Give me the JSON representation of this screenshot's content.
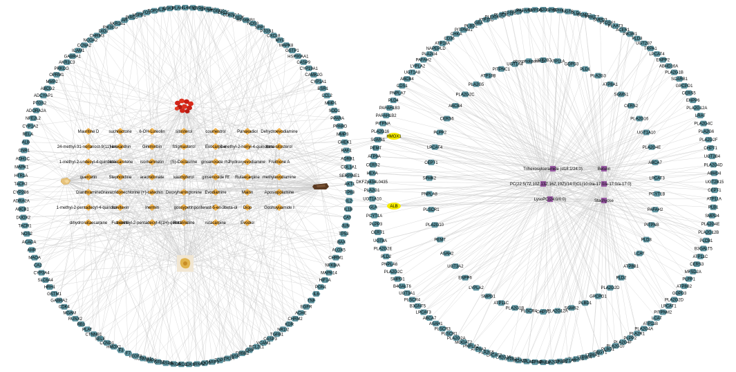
{
  "network_left": {
    "targets_outer": [
      "IL4",
      "IFNG",
      "CYP1B1",
      "CYP3A2",
      "PTGER3",
      "DRD5",
      "CDKN1A",
      "CHUK",
      "RPS6KB1",
      "NOS3",
      "SPP1",
      "PTGS1",
      "CXCL8",
      "MYC",
      "MAPK8",
      "GSTP1",
      "HSP90AA1",
      "CASP9",
      "CYP19A1",
      "CAMK2G",
      "CYP1A1",
      "ESR1",
      "CCL2",
      "MMP1",
      "SOD1",
      "PPARA",
      "PPARD",
      "MMP3",
      "CHEK1",
      "RAF1",
      "ADRB1",
      "COL1A1",
      "SERPINE1",
      "AKT1",
      "TP63",
      "IL2",
      "IL1B",
      "CAT",
      "JUN",
      "TP53",
      "BAX",
      "ALOX5",
      "CHRM1",
      "NFKBIA",
      "MAPK14",
      "HIF1A",
      "PON1",
      "IL6",
      "TNF",
      "EGFR",
      "ACHE",
      "CHRM2",
      "KDR",
      "NR1I2",
      "TGFB1",
      "CASP3",
      "VCAM1",
      "BCL2L1",
      "CRP",
      "ERBB2",
      "INSR",
      "HTR2A",
      "TOP1",
      "PARP1",
      "NQO1",
      "CHRNA7",
      "CDK1",
      "DRD1",
      "PRKCA",
      "CASP8",
      "TGFB2",
      "MMP9",
      "KCNMA1",
      "VEGFA",
      "F7",
      "F3",
      "HMOX1",
      "CCND1",
      "SELE",
      "CTNNB1",
      "PLAT",
      "RB1",
      "RUNX2",
      "MGAM",
      "CDK4",
      "GABRA2",
      "GSTM1",
      "HRH1",
      "SLC6A4",
      "CYP3A4",
      "CA2",
      "MAOA",
      "AHR",
      "ACACA",
      "NOS2",
      "TACR1",
      "DUOX2",
      "ABCB1",
      "ADRA2A",
      "CYP2B6",
      "TACR2",
      "HTR1A",
      "MAPK1",
      "ADH1C",
      "CNR1",
      "ALB",
      "RELA",
      "CYP1A2",
      "NFE2L2",
      "ADORA2A",
      "PTGS2",
      "ADCYAP1",
      "ABCG2",
      "MMP2",
      "OPRM1",
      "PRKCG",
      "AKR1C3",
      "GABRA1",
      "ICAM1",
      "CCNA2",
      "NCOA2",
      "CHRM3",
      "DIO2",
      "PIK3CG",
      "AKR1B1",
      "AR",
      "BIRC5",
      "HSPB1",
      "FOS",
      "TOP2A",
      "IL10",
      "CSK3B",
      "PLAU"
    ],
    "compounds": [
      "Mauritine D",
      "suchilactone",
      "6-OH-Luteolin",
      "sitosterol",
      "coumestrol",
      "Panaxadiol",
      "Dehydroevodiamine",
      "24-methyl-31-norlanost-9(11)-enol",
      "Neoxanthin",
      "Giniminbin",
      "Stigmasterol",
      "Evocarpine",
      "1-methyl-2-nonyl-4-quinolone",
      "beta-sitosterol",
      "1-methyl-2-undecyl-4-quinolone",
      "beta-carotene",
      "isorhamnetin",
      "(S)-Coclaurine",
      "ginsenoside rh2",
      "hydroxyevodiamine",
      "Fruitnone A",
      "quercetin",
      "Stepholidine",
      "arachidonate",
      "kaempferol",
      "ginsenoside Rf",
      "Rutaecarpine",
      "methylevodiamine",
      "Dianthramine",
      "Gravacridonechlorine",
      "(+)-catechin",
      "Deoxyharringtonine",
      "Evodiamine",
      "Mairin",
      "Aposiopolamine",
      "1-methyl-2-pentadecyl-4-quinolone",
      "Isovitexin",
      "Inermin",
      "gossypetin",
      "poriferast-5-en-3beta-ol",
      "Diop",
      "Goshuyuamide I",
      "dihydroruitaecarpine",
      "Fumarine",
      "1-methyl-2-pentadecyl-4(1H)-quinolone",
      "Rutalinidine",
      "rutacarpine",
      "Evodiol"
    ],
    "herbs": [
      "pepper-herb-icon",
      "root-herb-icon",
      "bark-herb-icon",
      "flower-herb-icon"
    ]
  },
  "bridge_nodes": [
    "HMOX1",
    "ALB"
  ],
  "network_right": {
    "targets_outer": [
      "PLA2G4B",
      "GPAT",
      "SPHK1",
      "UGT8",
      "PLD1",
      "SGMS2",
      "PRKCZ",
      "SMPD3",
      "PTDSS1",
      "PLAAT3",
      "ACER1",
      "PIK3R1",
      "PLD3",
      "UGT2B7",
      "TRPA1",
      "LPCAT4",
      "ENPP2",
      "ABHD16A",
      "PLA2G1B",
      "SCARB1",
      "GPCPD1",
      "CERS5",
      "ENPP6",
      "PLA2G12A",
      "LRAT",
      "PLA2G4C",
      "PLA2G6",
      "PLA2G2F",
      "CHPT1",
      "UGT2B4",
      "PLA2G4D",
      "ABHD4",
      "UGT2B15",
      "CEPT1",
      "ATP11A",
      "PLB1",
      "SMPD4",
      "PLA2G4E",
      "PLA2G12B",
      "PLCB1",
      "B3GALT5",
      "ATP11C",
      "CERS3",
      "MFSD2A",
      "PLPP1",
      "ATP8B2",
      "GDPD3",
      "PLA2G2D",
      "LPCAT1",
      "PITPNM2",
      "LCAT",
      "ATP11B",
      "PLA2G4A",
      "PLA2R1",
      "PLPP2",
      "PLA2G4F",
      "PLA2G10",
      "PLBD1",
      "GBGT1",
      "ATP8A1",
      "ATP8B4",
      "PLA2G3",
      "UGT1A9",
      "ATP8B1",
      "PLA2G7",
      "CPNE6",
      "PITPNB",
      "LYPLA1",
      "MBOAT2",
      "UGT2B17",
      "PLA2G15",
      "LPCAT2",
      "PLA2G5",
      "ATP8A2",
      "PNPLA2",
      "MOGAT2",
      "PLA2G2A",
      "PLSCR1",
      "PLSCR3",
      "ASAH1",
      "ABCA7",
      "LPCAT3",
      "B3GNT5",
      "PLSCR4",
      "UGT3A1",
      "B4GALT6",
      "SMPD1",
      "PLA2G2C",
      "PNPLA6",
      "PLD2",
      "PLA2G2E",
      "UGT8A",
      "CERT1",
      "PLPP3",
      "PCYT1A",
      "GLA",
      "UGT1A10",
      "PLA2G1",
      "DKFZp434L0435",
      "HEXA",
      "CERS2",
      "ATP9A",
      "PEMT",
      "SGMS1",
      "PLA2G16",
      "PITPNA",
      "PAFAH1B2",
      "PAFAH1B3",
      "PLD4",
      "PNPLA7",
      "CDS1",
      "ABCB4",
      "UGT1A8",
      "LYPLA2",
      "PAFAH2",
      "PLA2G4",
      "NAPEPLD",
      "ATP10A",
      "CD36",
      "CHKA",
      "PITPNM1",
      "PLBD2",
      "GBA",
      "ATP10D",
      "PLEKHA8",
      "PLSCR2",
      "ATP11C2",
      "UGT1A1",
      "PAFAH1B1",
      "SMPD2"
    ],
    "targets_inner": [
      "UGT2B7",
      "ATP11A",
      "GDPD3",
      "PLD1",
      "PLA2G3",
      "ATP8A1",
      "SGMS1",
      "CERS2",
      "PLA2G16",
      "UGT1A10",
      "PLA2G4E",
      "ABCA7",
      "LPCAT3",
      "PCYT1B",
      "PAFAH2",
      "PITPNB",
      "PLD3",
      "LCAT",
      "ATP8B1",
      "PLD2",
      "PLA2G2D",
      "GPCPD1",
      "PLBD1",
      "SGMS2",
      "PLA2G12A",
      "CHPT1",
      "PLSCR4",
      "PLA2G1B",
      "ATP11C",
      "SMPD1",
      "LYPLA2",
      "ENPP6",
      "UGT3A2",
      "ASAH2",
      "PEMT",
      "PLA2G10",
      "PLSCR1",
      "PNPLA8",
      "SPHK2",
      "CEPT1",
      "LPCAT4",
      "PLPP2",
      "CERS6",
      "ABCB4",
      "PLA2G2C",
      "PLA2G5",
      "ATP10B",
      "PITPNC1",
      "UGT1A4",
      "phospholipase D"
    ],
    "compounds": [
      "Trihexosylceramide (d18:1/24:0)",
      "Betulin",
      "PC(22:5(7Z,10Z,13Z,16Z,19Z)/14:0)",
      "CL(10:0/a-17:0/a-17:0/a-17:0)",
      "LysoPC(24:0/0:0)",
      "Stachyose"
    ]
  },
  "colors": {
    "target_node": "#5e94a0",
    "compound_left": "#f1b24a",
    "compound_right": "#9a5aa6",
    "bridge_node": "#f5ea00",
    "edge": "#c8c8c8"
  }
}
